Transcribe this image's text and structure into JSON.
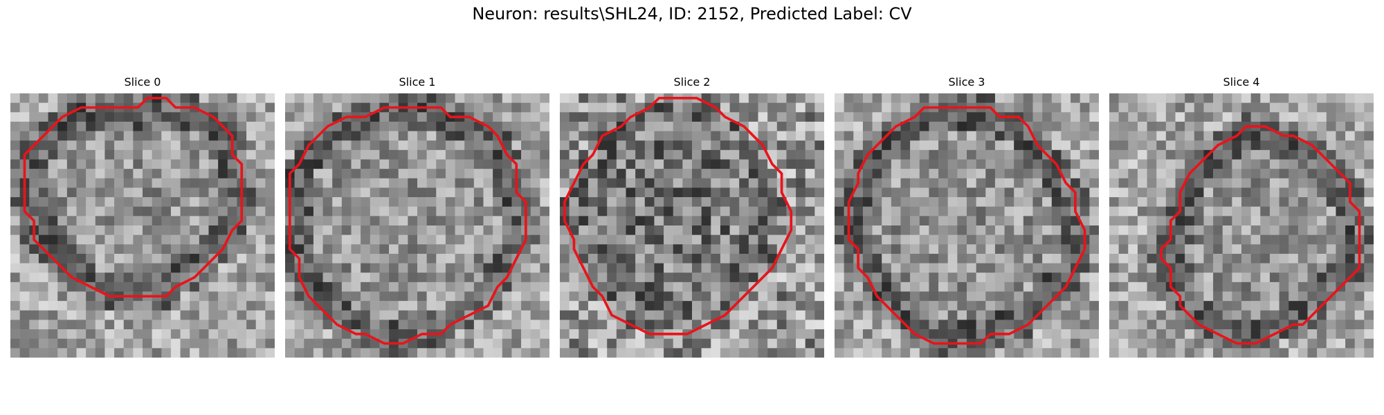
{
  "figure": {
    "suptitle": "Neuron: results\\SHL24, ID: 2152, Predicted Label: CV"
  },
  "panels": [
    {
      "title": "Slice 0",
      "outline": [
        [
          13,
          1
        ],
        [
          14,
          0
        ],
        [
          16,
          0
        ],
        [
          17,
          1
        ],
        [
          19,
          1
        ],
        [
          21,
          2
        ],
        [
          22,
          3
        ],
        [
          23,
          4
        ],
        [
          23,
          6
        ],
        [
          24,
          7
        ],
        [
          24,
          13
        ],
        [
          23,
          14
        ],
        [
          22,
          16
        ],
        [
          20,
          18
        ],
        [
          19,
          19
        ],
        [
          17,
          20
        ],
        [
          16,
          21
        ],
        [
          10,
          21
        ],
        [
          8,
          20
        ],
        [
          6,
          19
        ],
        [
          4,
          17
        ],
        [
          3,
          16
        ],
        [
          2,
          15
        ],
        [
          2,
          13
        ],
        [
          1,
          12
        ],
        [
          1,
          6
        ],
        [
          2,
          5
        ],
        [
          3,
          4
        ],
        [
          4,
          3
        ],
        [
          5,
          2
        ],
        [
          7,
          1
        ]
      ]
    },
    {
      "title": "Slice 1",
      "outline": [
        [
          10,
          1
        ],
        [
          16,
          1
        ],
        [
          17,
          2
        ],
        [
          19,
          2
        ],
        [
          21,
          3
        ],
        [
          22,
          4
        ],
        [
          23,
          6
        ],
        [
          24,
          7
        ],
        [
          24,
          10
        ],
        [
          25,
          11
        ],
        [
          25,
          15
        ],
        [
          24,
          17
        ],
        [
          23,
          19
        ],
        [
          22,
          20
        ],
        [
          21,
          22
        ],
        [
          19,
          23
        ],
        [
          17,
          24
        ],
        [
          16,
          25
        ],
        [
          14,
          25
        ],
        [
          12,
          26
        ],
        [
          10,
          26
        ],
        [
          8,
          25
        ],
        [
          7,
          25
        ],
        [
          5,
          24
        ],
        [
          4,
          23
        ],
        [
          3,
          22
        ],
        [
          2,
          21
        ],
        [
          1,
          19
        ],
        [
          1,
          17
        ],
        [
          0,
          16
        ],
        [
          0,
          8
        ],
        [
          1,
          7
        ],
        [
          2,
          5
        ],
        [
          3,
          4
        ],
        [
          4,
          3
        ],
        [
          6,
          2
        ],
        [
          8,
          2
        ]
      ]
    },
    {
      "title": "Slice 2",
      "outline": [
        [
          10,
          0
        ],
        [
          12,
          0
        ],
        [
          14,
          0
        ],
        [
          16,
          1
        ],
        [
          17,
          2
        ],
        [
          19,
          3
        ],
        [
          20,
          4
        ],
        [
          21,
          5
        ],
        [
          22,
          7
        ],
        [
          23,
          8
        ],
        [
          23,
          10
        ],
        [
          24,
          12
        ],
        [
          24,
          14
        ],
        [
          23,
          16
        ],
        [
          22,
          18
        ],
        [
          21,
          19
        ],
        [
          20,
          20
        ],
        [
          18,
          22
        ],
        [
          17,
          23
        ],
        [
          15,
          24
        ],
        [
          13,
          25
        ],
        [
          11,
          25
        ],
        [
          9,
          25
        ],
        [
          7,
          24
        ],
        [
          5,
          23
        ],
        [
          4,
          21
        ],
        [
          3,
          20
        ],
        [
          2,
          18
        ],
        [
          1,
          16
        ],
        [
          1,
          15
        ],
        [
          0,
          13
        ],
        [
          0,
          11
        ],
        [
          1,
          9
        ],
        [
          2,
          7
        ],
        [
          3,
          6
        ],
        [
          4,
          4
        ],
        [
          6,
          3
        ],
        [
          7,
          2
        ],
        [
          9,
          1
        ]
      ]
    },
    {
      "title": "Slice 3",
      "outline": [
        [
          10,
          1
        ],
        [
          14,
          1
        ],
        [
          16,
          1
        ],
        [
          17,
          2
        ],
        [
          19,
          2
        ],
        [
          20,
          3
        ],
        [
          21,
          5
        ],
        [
          22,
          6
        ],
        [
          23,
          7
        ],
        [
          24,
          9
        ],
        [
          25,
          10
        ],
        [
          25,
          12
        ],
        [
          26,
          14
        ],
        [
          26,
          16
        ],
        [
          25,
          18
        ],
        [
          24,
          20
        ],
        [
          23,
          21
        ],
        [
          21,
          23
        ],
        [
          20,
          24
        ],
        [
          18,
          25
        ],
        [
          16,
          25
        ],
        [
          15,
          26
        ],
        [
          12,
          26
        ],
        [
          10,
          26
        ],
        [
          8,
          25
        ],
        [
          7,
          24
        ],
        [
          5,
          22
        ],
        [
          4,
          21
        ],
        [
          3,
          19
        ],
        [
          2,
          18
        ],
        [
          2,
          16
        ],
        [
          1,
          15
        ],
        [
          1,
          13
        ],
        [
          1,
          11
        ],
        [
          2,
          9
        ],
        [
          2,
          8
        ],
        [
          3,
          6
        ],
        [
          4,
          5
        ],
        [
          5,
          4
        ],
        [
          6,
          3
        ],
        [
          8,
          2
        ],
        [
          9,
          1
        ]
      ]
    },
    {
      "title": "Slice 4",
      "outline": [
        [
          13,
          4
        ],
        [
          14,
          3
        ],
        [
          16,
          3
        ],
        [
          18,
          4
        ],
        [
          19,
          4
        ],
        [
          21,
          5
        ],
        [
          22,
          6
        ],
        [
          23,
          7
        ],
        [
          24,
          8
        ],
        [
          25,
          9
        ],
        [
          25,
          11
        ],
        [
          26,
          12
        ],
        [
          26,
          14
        ],
        [
          26,
          16
        ],
        [
          26,
          18
        ],
        [
          25,
          19
        ],
        [
          24,
          20
        ],
        [
          23,
          21
        ],
        [
          22,
          22
        ],
        [
          20,
          24
        ],
        [
          19,
          24
        ],
        [
          17,
          25
        ],
        [
          15,
          26
        ],
        [
          13,
          26
        ],
        [
          11,
          25
        ],
        [
          9,
          24
        ],
        [
          8,
          23
        ],
        [
          7,
          22
        ],
        [
          7,
          21
        ],
        [
          6,
          20
        ],
        [
          6,
          18
        ],
        [
          5,
          17
        ],
        [
          5,
          16
        ],
        [
          6,
          15
        ],
        [
          6,
          13
        ],
        [
          7,
          12
        ],
        [
          7,
          10
        ],
        [
          8,
          8
        ],
        [
          9,
          7
        ],
        [
          10,
          6
        ],
        [
          11,
          5
        ]
      ]
    }
  ]
}
